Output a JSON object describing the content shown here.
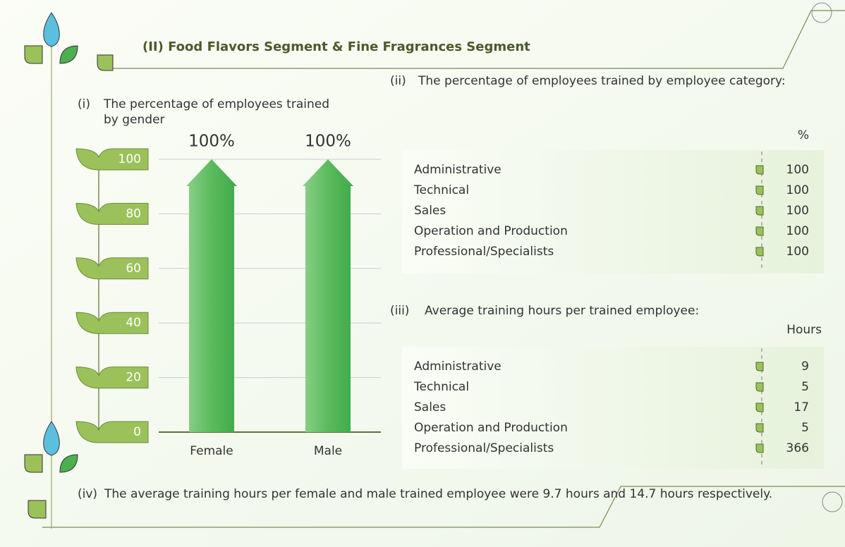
{
  "title": "(II) Food Flavors Segment & Fine Fragrances Segment",
  "chart_data": {
    "type": "bar",
    "label": "(i)",
    "title": "The percentage of employees trained by gender",
    "categories": [
      "Female",
      "Male"
    ],
    "values": [
      100,
      100
    ],
    "value_labels": [
      "100%",
      "100%"
    ],
    "color": "#4caf50",
    "ylim": [
      0,
      100
    ],
    "yticks": [
      0,
      20,
      40,
      60,
      80,
      100
    ],
    "grid": true
  },
  "table_category": {
    "label": "(ii)",
    "title": "The percentage of employees trained by employee category:",
    "unit": "%",
    "rows": [
      [
        "Administrative",
        "100"
      ],
      [
        "Technical",
        "100"
      ],
      [
        "Sales",
        "100"
      ],
      [
        "Operation and Production",
        "100"
      ],
      [
        "Professional/Specialists",
        "100"
      ]
    ]
  },
  "table_hours": {
    "label": "(iii)",
    "title": "Average training hours per trained employee:",
    "unit": "Hours",
    "rows": [
      [
        "Administrative",
        "9"
      ],
      [
        "Technical",
        "5"
      ],
      [
        "Sales",
        "17"
      ],
      [
        "Operation and Production",
        "5"
      ],
      [
        "Professional/Specialists",
        "366"
      ]
    ]
  },
  "note": {
    "label": "(iv)",
    "text": "The average training hours per female and male trained employee were 9.7 hours and 14.7 hours respectively."
  }
}
